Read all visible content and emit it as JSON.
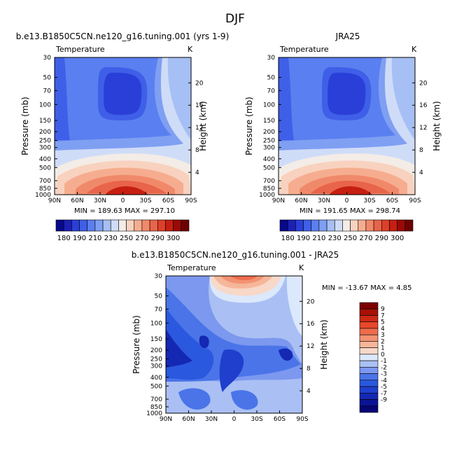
{
  "page_title": "DJF",
  "colors": {
    "abs_scale": [
      "#08088a",
      "#1c20b4",
      "#2a3fd8",
      "#3f5fe8",
      "#5a7ff0",
      "#7f9ff2",
      "#a6bff5",
      "#cfdcf8",
      "#f4ece6",
      "#f8d2bf",
      "#f6ad8f",
      "#f0896a",
      "#e8644a",
      "#dc402a",
      "#c61f12",
      "#9a0a06",
      "#6e0000"
    ],
    "diff_scale": [
      "#050575",
      "#0a1494",
      "#1428b4",
      "#1f3fcc",
      "#2a58de",
      "#4a74e8",
      "#7c98ef",
      "#aac0f4",
      "#dce8fb",
      "#f8d8c8",
      "#f6b69a",
      "#f29272",
      "#ee6c4c",
      "#e6482a",
      "#cc2a14",
      "#a61006",
      "#7a0000"
    ]
  },
  "chart_data": [
    {
      "type": "heatmap",
      "title": "b.e13.B1850C5CN.ne120_g16.tuning.001 (yrs 1-9)",
      "variable": "Temperature",
      "units": "K",
      "ylabel": "Pressure (mb)",
      "y2label": "Height (km)",
      "x_ticks": [
        "90N",
        "60N",
        "30N",
        "0",
        "30S",
        "60S",
        "90S"
      ],
      "y_ticks": [
        "30",
        "50",
        "70",
        "100",
        "150",
        "200",
        "250",
        "300",
        "400",
        "500",
        "700",
        "850",
        "1000"
      ],
      "y2_ticks": [
        "20",
        "16",
        "12",
        "8",
        "4"
      ],
      "min": 189.63,
      "max": 297.1,
      "minmax_text": "MIN = 189.63   MAX = 297.10",
      "colorbar_labels": [
        "180",
        "190",
        "210",
        "230",
        "250",
        "270",
        "290",
        "300"
      ]
    },
    {
      "type": "heatmap",
      "title": "JRA25",
      "variable": "Temperature",
      "units": "K",
      "ylabel": "Pressure (mb)",
      "y2label": "Height (km)",
      "x_ticks": [
        "90N",
        "60N",
        "30N",
        "0",
        "30S",
        "60S",
        "90S"
      ],
      "y_ticks": [
        "30",
        "50",
        "70",
        "100",
        "150",
        "200",
        "250",
        "300",
        "400",
        "500",
        "700",
        "850",
        "1000"
      ],
      "y2_ticks": [
        "20",
        "16",
        "12",
        "8",
        "4"
      ],
      "min": 191.65,
      "max": 298.74,
      "minmax_text": "MIN = 191.65   MAX = 298.74",
      "colorbar_labels": [
        "180",
        "190",
        "210",
        "230",
        "250",
        "270",
        "290",
        "300"
      ]
    },
    {
      "type": "heatmap",
      "title": "b.e13.B1850C5CN.ne120_g16.tuning.001 - JRA25",
      "variable": "Temperature",
      "units": "K",
      "ylabel": "Pressure (mb)",
      "y2label": "Height (km)",
      "x_ticks": [
        "90N",
        "60N",
        "30N",
        "0",
        "30S",
        "60S",
        "90S"
      ],
      "y_ticks": [
        "30",
        "50",
        "70",
        "100",
        "150",
        "200",
        "250",
        "300",
        "400",
        "500",
        "700",
        "850",
        "1000"
      ],
      "y2_ticks": [
        "20",
        "16",
        "12",
        "8",
        "4"
      ],
      "min": -13.67,
      "max": 4.85,
      "minmax_text": "MIN = -13.67   MAX =    4.85",
      "colorbar_labels": [
        "9",
        "7",
        "5",
        "4",
        "3",
        "2",
        "1",
        "0",
        "-1",
        "-2",
        "-3",
        "-4",
        "-5",
        "-7",
        "-9"
      ]
    }
  ]
}
